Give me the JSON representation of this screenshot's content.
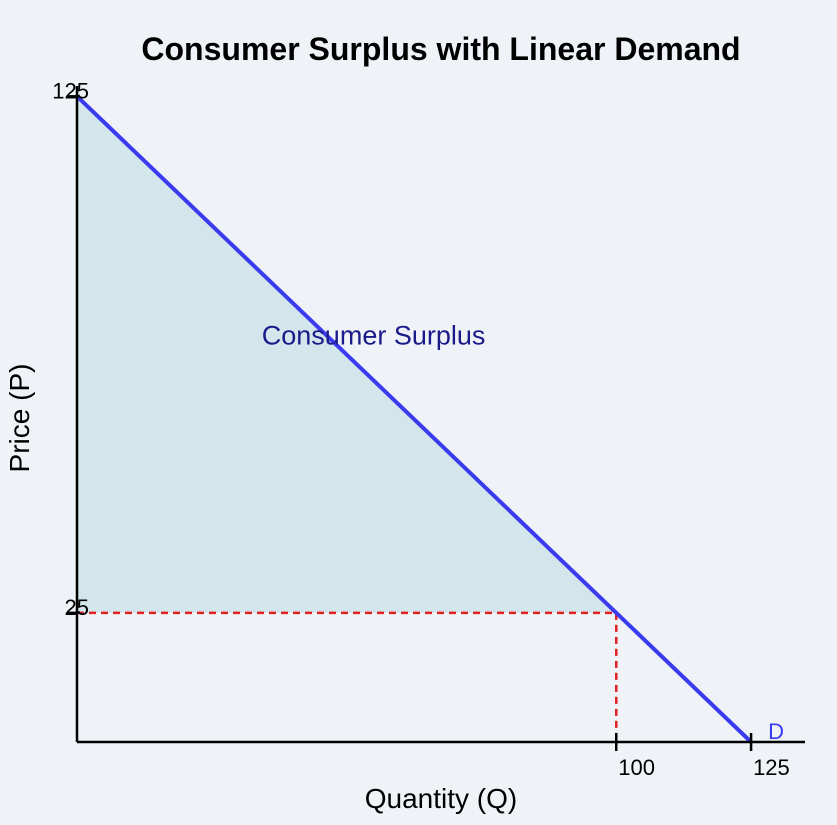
{
  "chart_data": {
    "type": "line",
    "title": "Consumer Surplus with Linear Demand",
    "xlabel": "Quantity (Q)",
    "ylabel": "Price (P)",
    "xlim": [
      0,
      135
    ],
    "ylim": [
      0,
      127
    ],
    "grid": false,
    "demand": {
      "name": "D",
      "points": [
        [
          0,
          125
        ],
        [
          125,
          0
        ]
      ]
    },
    "equilibrium": {
      "quantity": 100,
      "price": 25
    },
    "x_ticks": [
      {
        "value": 100,
        "label": "100"
      },
      {
        "value": 125,
        "label": "125"
      }
    ],
    "y_ticks": [
      {
        "value": 25,
        "label": "25"
      },
      {
        "value": 125,
        "label": "125"
      }
    ],
    "surplus_region": {
      "label": "Consumer Surplus",
      "vertices": [
        [
          0,
          125
        ],
        [
          0,
          25
        ],
        [
          100,
          25
        ]
      ]
    },
    "annotation_anchor": {
      "x": 55,
      "y": 77
    },
    "colors": {
      "demand": "#3a3aef",
      "surplus_fill": "#b9dbe3",
      "reference": "#e02020",
      "label": "#1a1a8a",
      "axis": "#000000"
    }
  }
}
